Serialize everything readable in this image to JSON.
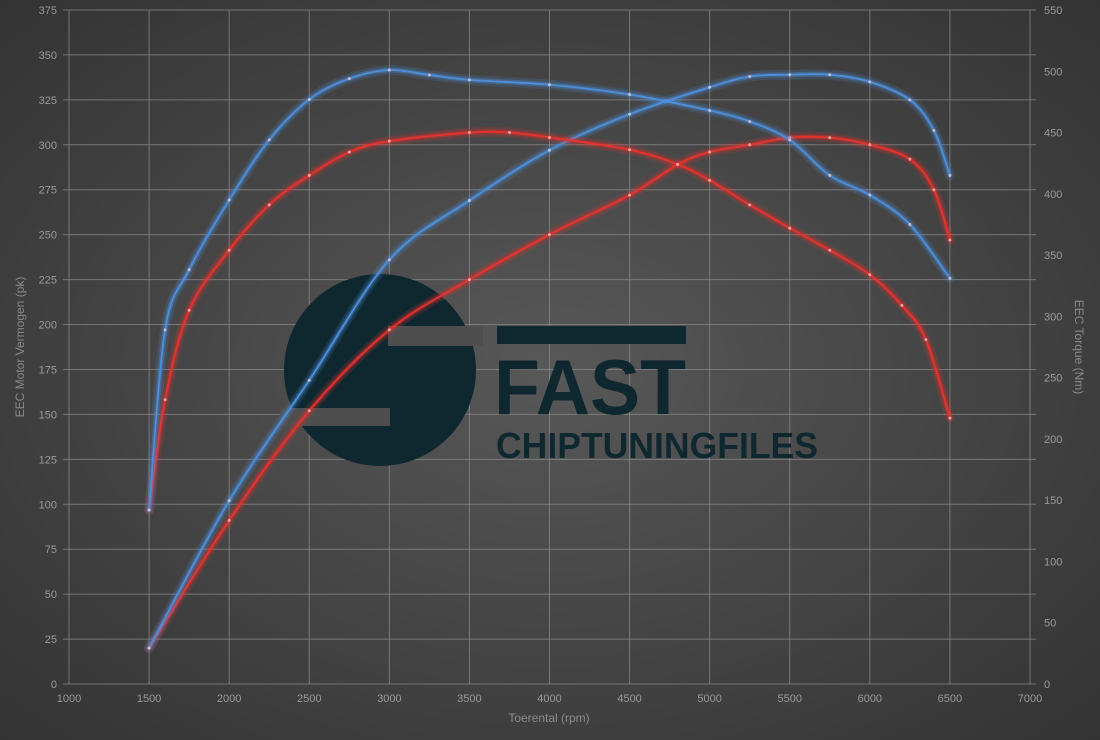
{
  "chart_data": {
    "type": "line",
    "xlabel": "Toerental (rpm)",
    "ylabel": "EEC Motor Vermogen (pk)",
    "y2label": "EEC Torque (Nm)",
    "xlim": [
      1000,
      7000
    ],
    "ylim": [
      0,
      375
    ],
    "y2lim": [
      0,
      550
    ],
    "xticks": [
      1000,
      1500,
      2000,
      2500,
      3000,
      3500,
      4000,
      4500,
      5000,
      5500,
      6000,
      6500,
      7000
    ],
    "yticks": [
      0,
      25,
      50,
      75,
      100,
      125,
      150,
      175,
      200,
      225,
      250,
      275,
      300,
      325,
      350,
      375
    ],
    "y2ticks": [
      0,
      50,
      100,
      150,
      200,
      250,
      300,
      350,
      400,
      450,
      500,
      550
    ],
    "grid": true,
    "series": [
      {
        "axis": "left",
        "color": "#e8322e",
        "x": [
          1500,
          2000,
          2500,
          3000,
          3500,
          4000,
          4500,
          4800,
          5000,
          5250,
          5500,
          5750,
          6000,
          6250,
          6400,
          6500
        ],
        "y": [
          20,
          91,
          152,
          197,
          225,
          250,
          272,
          289,
          296,
          300,
          304,
          304,
          300,
          292,
          275,
          247
        ]
      },
      {
        "axis": "left",
        "color": "#4d8fdb",
        "x": [
          1500,
          2000,
          2500,
          3000,
          3500,
          4000,
          4500,
          5000,
          5250,
          5500,
          5750,
          6000,
          6250,
          6400,
          6500
        ],
        "y": [
          20,
          102,
          169,
          236,
          269,
          297,
          317,
          332,
          338,
          339,
          339,
          335,
          325,
          308,
          283
        ]
      },
      {
        "axis": "right",
        "color": "#e8322e",
        "x": [
          1500,
          1600,
          1750,
          2000,
          2250,
          2500,
          2750,
          3000,
          3500,
          3750,
          4000,
          4500,
          4800,
          5000,
          5250,
          5500,
          5750,
          6000,
          6200,
          6350,
          6500
        ],
        "y": [
          142,
          232,
          305,
          354,
          391,
          415,
          434,
          443,
          450,
          450,
          446,
          436,
          424,
          411,
          391,
          372,
          354,
          334,
          309,
          281,
          217
        ]
      },
      {
        "axis": "right",
        "color": "#4d8fdb",
        "x": [
          1500,
          1600,
          1750,
          2000,
          2250,
          2500,
          2750,
          3000,
          3250,
          3500,
          4000,
          4500,
          5000,
          5250,
          5500,
          5750,
          6000,
          6250,
          6500
        ],
        "y": [
          142,
          289,
          338,
          395,
          444,
          477,
          494,
          501,
          497,
          493,
          489,
          481,
          468,
          459,
          444,
          415,
          399,
          375,
          331
        ]
      }
    ]
  },
  "logo": {
    "line1": "FAST",
    "line2": "CHIPTUNINGFILES",
    "color": "#0f2830"
  }
}
